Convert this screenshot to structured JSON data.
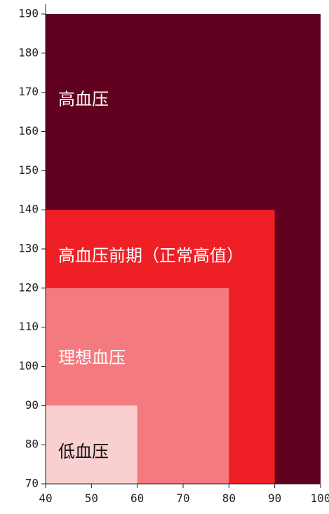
{
  "chart_data": {
    "type": "area",
    "title": "",
    "xlabel": "",
    "ylabel": "",
    "xlim": [
      40,
      100
    ],
    "ylim": [
      70,
      190
    ],
    "xticks": [
      "40",
      "50",
      "60",
      "70",
      "80",
      "90",
      "100"
    ],
    "yticks": [
      "70",
      "80",
      "90",
      "100",
      "110",
      "120",
      "130",
      "140",
      "150",
      "160",
      "170",
      "180",
      "190"
    ],
    "grid": false,
    "regions": [
      {
        "label": "高血压",
        "x_max": 100,
        "y_max": 190,
        "color": "#620020",
        "text_color": "#ffffff",
        "label_y": 168
      },
      {
        "label": "高血压前期（正常高值）",
        "x_max": 90,
        "y_max": 140,
        "color": "#ee1f25",
        "text_color": "#ffffff",
        "label_y": 128
      },
      {
        "label": "理想血压",
        "x_max": 80,
        "y_max": 120,
        "color": "#f37b7f",
        "text_color": "#ffffff",
        "label_y": 102
      },
      {
        "label": "低血压",
        "x_max": 60,
        "y_max": 90,
        "color": "#f9cfcf",
        "text_color": "#111111",
        "label_y": 78
      }
    ]
  }
}
